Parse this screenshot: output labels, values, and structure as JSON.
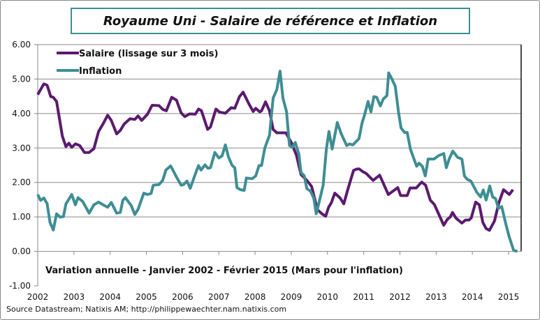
{
  "chart_data": {
    "type": "line",
    "title": "Royaume Uni - Salaire de référence et Inflation",
    "annotation": "Variation annuelle  - Janvier 2002 - Février 2015 (Mars pour l'inflation)",
    "source": "Source Datastream; Natixis AM; http://philippewaechter.nam.natixis.com",
    "xlabel": "",
    "ylabel": "",
    "xlim": [
      2002,
      2015.35
    ],
    "ylim": [
      -1,
      6
    ],
    "x_ticks": [
      "2002",
      "2003",
      "2004",
      "2005",
      "2006",
      "2007",
      "2008",
      "2009",
      "2010",
      "2011",
      "2012",
      "2013",
      "2014",
      "2015"
    ],
    "y_ticks": [
      "6.00",
      "5.00",
      "4.00",
      "3.00",
      "2.00",
      "1.00",
      "0.00",
      "-1.00"
    ],
    "grid": true,
    "legend_position": "top-left",
    "series": [
      {
        "name": "Salaire (lissage sur 3 mois)",
        "color": "#5b1a6e",
        "points": [
          [
            2002.0,
            4.55
          ],
          [
            2002.17,
            4.86
          ],
          [
            2002.26,
            4.82
          ],
          [
            2002.36,
            4.49
          ],
          [
            2002.43,
            4.47
          ],
          [
            2002.52,
            4.35
          ],
          [
            2002.68,
            3.34
          ],
          [
            2002.78,
            3.04
          ],
          [
            2002.86,
            3.14
          ],
          [
            2002.94,
            3.02
          ],
          [
            2003.04,
            3.12
          ],
          [
            2003.16,
            3.07
          ],
          [
            2003.29,
            2.87
          ],
          [
            2003.42,
            2.87
          ],
          [
            2003.55,
            2.98
          ],
          [
            2003.68,
            3.48
          ],
          [
            2003.81,
            3.71
          ],
          [
            2003.93,
            3.95
          ],
          [
            2004.03,
            3.8
          ],
          [
            2004.18,
            3.41
          ],
          [
            2004.28,
            3.51
          ],
          [
            2004.39,
            3.7
          ],
          [
            2004.55,
            3.85
          ],
          [
            2004.68,
            3.83
          ],
          [
            2004.77,
            3.93
          ],
          [
            2004.87,
            3.8
          ],
          [
            2005.03,
            3.98
          ],
          [
            2005.16,
            4.24
          ],
          [
            2005.35,
            4.23
          ],
          [
            2005.45,
            4.12
          ],
          [
            2005.55,
            4.08
          ],
          [
            2005.7,
            4.47
          ],
          [
            2005.83,
            4.39
          ],
          [
            2005.96,
            4.02
          ],
          [
            2006.06,
            3.91
          ],
          [
            2006.19,
            3.99
          ],
          [
            2006.35,
            3.98
          ],
          [
            2006.44,
            4.13
          ],
          [
            2006.52,
            4.08
          ],
          [
            2006.69,
            3.54
          ],
          [
            2006.77,
            3.61
          ],
          [
            2006.92,
            4.13
          ],
          [
            2007.02,
            4.04
          ],
          [
            2007.18,
            4.01
          ],
          [
            2007.34,
            4.17
          ],
          [
            2007.44,
            4.15
          ],
          [
            2007.57,
            4.49
          ],
          [
            2007.67,
            4.62
          ],
          [
            2007.83,
            4.28
          ],
          [
            2007.95,
            4.06
          ],
          [
            2008.02,
            4.15
          ],
          [
            2008.13,
            4.05
          ],
          [
            2008.18,
            4.08
          ],
          [
            2008.29,
            4.34
          ],
          [
            2008.4,
            4.08
          ],
          [
            2008.5,
            3.54
          ],
          [
            2008.6,
            3.44
          ],
          [
            2008.85,
            3.44
          ],
          [
            2009.01,
            3.14
          ],
          [
            2009.14,
            2.8
          ],
          [
            2009.27,
            2.23
          ],
          [
            2009.43,
            2.06
          ],
          [
            2009.56,
            1.89
          ],
          [
            2009.72,
            1.21
          ],
          [
            2009.85,
            1.09
          ],
          [
            2009.95,
            1.02
          ],
          [
            2010.03,
            1.28
          ],
          [
            2010.11,
            1.42
          ],
          [
            2010.2,
            1.69
          ],
          [
            2010.35,
            1.55
          ],
          [
            2010.45,
            1.38
          ],
          [
            2010.56,
            1.79
          ],
          [
            2010.72,
            2.35
          ],
          [
            2010.82,
            2.39
          ],
          [
            2010.88,
            2.39
          ],
          [
            2010.98,
            2.31
          ],
          [
            2011.07,
            2.26
          ],
          [
            2011.26,
            2.06
          ],
          [
            2011.44,
            2.21
          ],
          [
            2011.68,
            1.65
          ],
          [
            2011.81,
            1.75
          ],
          [
            2011.94,
            1.85
          ],
          [
            2012.02,
            1.62
          ],
          [
            2012.2,
            1.62
          ],
          [
            2012.28,
            1.84
          ],
          [
            2012.45,
            1.84
          ],
          [
            2012.6,
            2.01
          ],
          [
            2012.71,
            1.92
          ],
          [
            2012.84,
            1.48
          ],
          [
            2012.95,
            1.36
          ],
          [
            2013.21,
            0.76
          ],
          [
            2013.31,
            0.93
          ],
          [
            2013.39,
            1.0
          ],
          [
            2013.45,
            1.13
          ],
          [
            2013.55,
            0.96
          ],
          [
            2013.71,
            0.82
          ],
          [
            2013.81,
            0.91
          ],
          [
            2013.91,
            0.91
          ],
          [
            2013.97,
            0.97
          ],
          [
            2014.09,
            1.43
          ],
          [
            2014.19,
            1.35
          ],
          [
            2014.29,
            0.84
          ],
          [
            2014.38,
            0.66
          ],
          [
            2014.47,
            0.61
          ],
          [
            2014.61,
            0.88
          ],
          [
            2014.73,
            1.41
          ],
          [
            2014.86,
            1.79
          ],
          [
            2015.02,
            1.65
          ],
          [
            2015.12,
            1.79
          ]
        ]
      },
      {
        "name": "Inflation",
        "color": "#3e8e93",
        "points": [
          [
            2002.0,
            1.65
          ],
          [
            2002.08,
            1.48
          ],
          [
            2002.17,
            1.55
          ],
          [
            2002.26,
            1.38
          ],
          [
            2002.34,
            0.84
          ],
          [
            2002.43,
            0.62
          ],
          [
            2002.52,
            1.09
          ],
          [
            2002.62,
            0.99
          ],
          [
            2002.71,
            1.01
          ],
          [
            2002.78,
            1.38
          ],
          [
            2002.94,
            1.65
          ],
          [
            2003.04,
            1.35
          ],
          [
            2003.11,
            1.56
          ],
          [
            2003.24,
            1.45
          ],
          [
            2003.42,
            1.11
          ],
          [
            2003.55,
            1.35
          ],
          [
            2003.68,
            1.43
          ],
          [
            2003.81,
            1.35
          ],
          [
            2003.93,
            1.28
          ],
          [
            2004.03,
            1.42
          ],
          [
            2004.18,
            1.11
          ],
          [
            2004.28,
            1.13
          ],
          [
            2004.35,
            1.48
          ],
          [
            2004.42,
            1.56
          ],
          [
            2004.58,
            1.33
          ],
          [
            2004.68,
            1.07
          ],
          [
            2004.77,
            1.22
          ],
          [
            2004.93,
            1.69
          ],
          [
            2005.03,
            1.65
          ],
          [
            2005.13,
            1.68
          ],
          [
            2005.19,
            1.92
          ],
          [
            2005.35,
            1.94
          ],
          [
            2005.45,
            2.06
          ],
          [
            2005.54,
            2.36
          ],
          [
            2005.67,
            2.48
          ],
          [
            2005.83,
            2.16
          ],
          [
            2005.96,
            1.92
          ],
          [
            2006.03,
            1.94
          ],
          [
            2006.12,
            2.04
          ],
          [
            2006.21,
            1.83
          ],
          [
            2006.35,
            2.24
          ],
          [
            2006.44,
            2.49
          ],
          [
            2006.51,
            2.36
          ],
          [
            2006.62,
            2.51
          ],
          [
            2006.7,
            2.41
          ],
          [
            2006.77,
            2.43
          ],
          [
            2006.89,
            2.87
          ],
          [
            2007.0,
            2.71
          ],
          [
            2007.09,
            2.77
          ],
          [
            2007.18,
            3.09
          ],
          [
            2007.27,
            2.73
          ],
          [
            2007.37,
            2.49
          ],
          [
            2007.44,
            2.43
          ],
          [
            2007.5,
            1.85
          ],
          [
            2007.6,
            1.79
          ],
          [
            2007.7,
            1.77
          ],
          [
            2007.76,
            2.13
          ],
          [
            2007.92,
            2.11
          ],
          [
            2008.02,
            2.19
          ],
          [
            2008.11,
            2.49
          ],
          [
            2008.18,
            2.49
          ],
          [
            2008.27,
            3.0
          ],
          [
            2008.4,
            3.37
          ],
          [
            2008.5,
            4.45
          ],
          [
            2008.6,
            4.69
          ],
          [
            2008.69,
            5.23
          ],
          [
            2008.77,
            4.45
          ],
          [
            2008.87,
            4.05
          ],
          [
            2008.95,
            3.07
          ],
          [
            2009.03,
            3.02
          ],
          [
            2009.11,
            3.16
          ],
          [
            2009.21,
            2.83
          ],
          [
            2009.27,
            2.29
          ],
          [
            2009.36,
            2.19
          ],
          [
            2009.43,
            1.82
          ],
          [
            2009.53,
            1.75
          ],
          [
            2009.62,
            1.55
          ],
          [
            2009.69,
            1.09
          ],
          [
            2009.78,
            1.48
          ],
          [
            2009.88,
            1.92
          ],
          [
            2009.97,
            2.97
          ],
          [
            2010.04,
            3.48
          ],
          [
            2010.13,
            2.97
          ],
          [
            2010.27,
            3.74
          ],
          [
            2010.38,
            3.41
          ],
          [
            2010.53,
            3.07
          ],
          [
            2010.61,
            3.12
          ],
          [
            2010.7,
            3.09
          ],
          [
            2010.87,
            3.27
          ],
          [
            2010.95,
            3.71
          ],
          [
            2011.02,
            3.95
          ],
          [
            2011.12,
            4.35
          ],
          [
            2011.2,
            4.05
          ],
          [
            2011.28,
            4.49
          ],
          [
            2011.36,
            4.47
          ],
          [
            2011.46,
            4.22
          ],
          [
            2011.54,
            4.42
          ],
          [
            2011.64,
            4.52
          ],
          [
            2011.69,
            5.18
          ],
          [
            2011.78,
            5.0
          ],
          [
            2011.87,
            4.79
          ],
          [
            2011.96,
            4.05
          ],
          [
            2012.03,
            3.58
          ],
          [
            2012.13,
            3.45
          ],
          [
            2012.2,
            3.45
          ],
          [
            2012.29,
            2.97
          ],
          [
            2012.37,
            2.73
          ],
          [
            2012.46,
            2.47
          ],
          [
            2012.53,
            2.56
          ],
          [
            2012.62,
            2.47
          ],
          [
            2012.7,
            2.19
          ],
          [
            2012.78,
            2.68
          ],
          [
            2012.94,
            2.68
          ],
          [
            2013.07,
            2.78
          ],
          [
            2013.21,
            2.84
          ],
          [
            2013.28,
            2.43
          ],
          [
            2013.36,
            2.68
          ],
          [
            2013.46,
            2.91
          ],
          [
            2013.59,
            2.73
          ],
          [
            2013.71,
            2.68
          ],
          [
            2013.78,
            2.19
          ],
          [
            2013.86,
            2.09
          ],
          [
            2013.96,
            2.04
          ],
          [
            2014.12,
            1.72
          ],
          [
            2014.23,
            1.58
          ],
          [
            2014.3,
            1.78
          ],
          [
            2014.38,
            1.49
          ],
          [
            2014.48,
            1.9
          ],
          [
            2014.56,
            1.58
          ],
          [
            2014.64,
            1.53
          ],
          [
            2014.72,
            1.25
          ],
          [
            2014.81,
            1.3
          ],
          [
            2014.92,
            0.81
          ],
          [
            2015.01,
            0.44
          ],
          [
            2015.14,
            0.03
          ],
          [
            2015.24,
            0.0
          ]
        ]
      }
    ]
  }
}
